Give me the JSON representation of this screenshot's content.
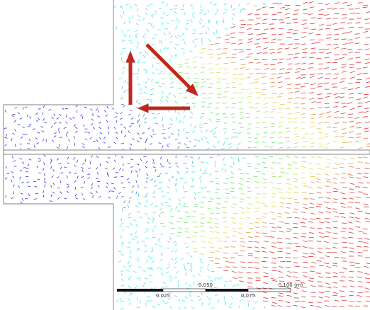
{
  "scale_bar": {
    "top_labels": [
      "0.050",
      "0.100 (m)"
    ],
    "bottom_labels": [
      "0.025",
      "0.075"
    ]
  }
}
